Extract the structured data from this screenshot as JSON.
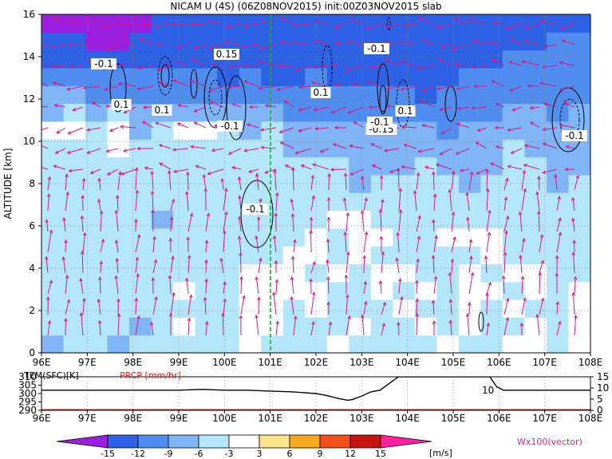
{
  "title": "NICAM U (4S) (06Z08NOV2015) init:00Z03NOV2015 slab",
  "colors": {
    "c_m15": "#9a1fe0",
    "c_m12": "#2e62e6",
    "c_m9": "#4f8ef0",
    "c_m6": "#7fb4f6",
    "c_m3": "#b3e6fa",
    "c_0": "#ffffff",
    "c_3": "#fde68a",
    "c_6": "#f9a81f",
    "c_9": "#f4501c",
    "c_12": "#c81410",
    "c_15": "#ff1fa0",
    "vector": "#e0157c",
    "marker": "#12b02a",
    "tem_line": "#000000",
    "prcp_line": "#e0201a"
  },
  "colorbar": {
    "labels": [
      "-15",
      "-12",
      "-9",
      "-6",
      "-3",
      "3",
      "6",
      "9",
      "12",
      "15"
    ],
    "unit": "[m/s]",
    "vector_label": "Wx100(vector)"
  },
  "top_panel": {
    "ylabel": "ALTITUDE [km]",
    "yticks": [
      "0",
      "2",
      "4",
      "6",
      "8",
      "10",
      "12",
      "14",
      "16"
    ],
    "xticks": [
      "96E",
      "97E",
      "98E",
      "99E",
      "100E",
      "101E",
      "102E",
      "103E",
      "104E",
      "105E",
      "106E",
      "107E",
      "108E"
    ],
    "contour_labels": [
      "-0.1",
      "0.1",
      "0.1",
      "0.15",
      "-0.1",
      "0.1",
      "-0.1",
      "-0.15",
      "0.1",
      "-0.1",
      "-0.1",
      "-0.1"
    ]
  },
  "bottom_panel": {
    "tem_label": "TEM(SFC)[K]",
    "prcp_label": "PRCP [mm/hr]",
    "left_ticks": [
      "310",
      "305",
      "300",
      "295",
      "290"
    ],
    "right_ticks": [
      "15",
      "10",
      "5",
      "0"
    ],
    "annotation": "10",
    "xticks": [
      "96E",
      "97E",
      "98E",
      "99E",
      "100E",
      "101E",
      "102E",
      "103E",
      "104E",
      "105E",
      "106E",
      "107E",
      "108E"
    ]
  },
  "chart_data": [
    {
      "type": "heatmap",
      "title": "NICAM U (4S) (06Z08NOV2015) init:00Z03NOV2015 slab",
      "xlabel": "",
      "ylabel": "ALTITUDE [km]",
      "xlim": [
        96,
        108
      ],
      "ylim": [
        0,
        16
      ],
      "x_ticks": [
        "96E",
        "97E",
        "98E",
        "99E",
        "100E",
        "101E",
        "102E",
        "103E",
        "104E",
        "105E",
        "106E",
        "107E",
        "108E"
      ],
      "y_ticks": [
        0,
        2,
        4,
        6,
        8,
        10,
        12,
        14,
        16
      ],
      "grid": true,
      "colorbar_levels": [
        -15,
        -12,
        -9,
        -6,
        -3,
        3,
        6,
        9,
        12,
        15
      ],
      "colorbar_unit": "[m/s]",
      "marker_line_x": 101,
      "z_rows_bottom_to_top": [
        [
          -6,
          -3,
          -3,
          -6,
          -3,
          -3,
          -3,
          -3,
          -3,
          0,
          -3,
          -3,
          -3,
          0,
          -3,
          -3,
          -3,
          -3,
          0,
          -3,
          -3,
          0,
          0,
          -3,
          0
        ],
        [
          -3,
          -3,
          -3,
          -3,
          -6,
          -3,
          0,
          -3,
          -3,
          0,
          0,
          -3,
          -3,
          -3,
          0,
          -3,
          -3,
          0,
          -3,
          0,
          -3,
          -3,
          0,
          -3,
          0
        ],
        [
          -3,
          -3,
          -3,
          -3,
          -3,
          -3,
          -3,
          -3,
          -3,
          0,
          0,
          -3,
          0,
          -3,
          -3,
          -3,
          0,
          -3,
          -3,
          0,
          -3,
          0,
          -3,
          -3,
          0
        ],
        [
          -3,
          -3,
          -3,
          -3,
          -3,
          -3,
          0,
          -3,
          -3,
          0,
          0,
          0,
          0,
          -3,
          -3,
          0,
          -3,
          0,
          -3,
          0,
          0,
          -3,
          0,
          -3,
          0
        ],
        [
          -3,
          -3,
          -3,
          -3,
          -3,
          -3,
          -3,
          -3,
          -3,
          0,
          0,
          0,
          -3,
          0,
          -3,
          0,
          0,
          -3,
          -3,
          0,
          -3,
          0,
          0,
          -3,
          -3
        ],
        [
          -3,
          -3,
          -3,
          -3,
          -3,
          -3,
          -3,
          -3,
          -3,
          -3,
          -3,
          0,
          0,
          -3,
          0,
          -3,
          -3,
          -3,
          -3,
          -3,
          0,
          -3,
          -3,
          -3,
          -3
        ],
        [
          -3,
          -3,
          -3,
          -3,
          -3,
          -3,
          -3,
          -3,
          -3,
          -3,
          -3,
          -3,
          0,
          -3,
          0,
          0,
          -3,
          -3,
          0,
          0,
          0,
          -3,
          -3,
          -3,
          -3
        ],
        [
          -3,
          -3,
          -3,
          -3,
          -3,
          -6,
          -3,
          -3,
          -3,
          -3,
          -3,
          -3,
          -3,
          0,
          0,
          -3,
          -3,
          -3,
          -3,
          -3,
          -3,
          -3,
          -3,
          -3,
          -3
        ],
        [
          -3,
          -3,
          -3,
          -3,
          -3,
          -3,
          -3,
          -3,
          -3,
          -3,
          -3,
          -3,
          -3,
          -3,
          -3,
          -3,
          -3,
          -3,
          -3,
          -3,
          -3,
          -3,
          -3,
          -3,
          -3
        ],
        [
          -3,
          -3,
          -3,
          -3,
          -3,
          -3,
          -3,
          -3,
          -3,
          -3,
          -3,
          -3,
          -3,
          -3,
          -6,
          -3,
          -3,
          -3,
          -3,
          -6,
          -3,
          -3,
          -3,
          -6,
          -3
        ],
        [
          -3,
          -3,
          -3,
          -3,
          -3,
          -3,
          -3,
          -3,
          -3,
          -3,
          -3,
          -3,
          -3,
          -3,
          -6,
          -6,
          -6,
          -3,
          -6,
          -6,
          -6,
          -3,
          -3,
          -6,
          -6
        ],
        [
          -3,
          -3,
          -3,
          0,
          -3,
          -3,
          -3,
          -3,
          -3,
          -3,
          -3,
          -6,
          -6,
          -6,
          -6,
          -6,
          -6,
          -6,
          -6,
          -6,
          -6,
          -3,
          -6,
          -6,
          -6
        ],
        [
          0,
          0,
          -3,
          0,
          -6,
          -3,
          0,
          0,
          -3,
          -6,
          -3,
          -6,
          -6,
          -6,
          -6,
          -6,
          -6,
          -6,
          -9,
          -6,
          -6,
          -6,
          -6,
          -6,
          -6
        ],
        [
          -6,
          -3,
          -6,
          -3,
          -6,
          -6,
          -6,
          -6,
          -6,
          -6,
          -6,
          -9,
          -9,
          -9,
          -9,
          -9,
          -9,
          -9,
          -9,
          -9,
          -9,
          -6,
          -6,
          -9,
          -6
        ],
        [
          -6,
          -6,
          -9,
          -9,
          -9,
          -9,
          -9,
          -9,
          -9,
          -9,
          -9,
          -9,
          -9,
          -9,
          -9,
          -9,
          -9,
          -12,
          -9,
          -9,
          -9,
          -9,
          -9,
          -9,
          -9
        ],
        [
          -9,
          -9,
          -9,
          -9,
          -9,
          -9,
          -9,
          -9,
          -12,
          -9,
          -12,
          -12,
          -9,
          -12,
          -12,
          -12,
          -12,
          -12,
          -12,
          -9,
          -9,
          -9,
          -9,
          -9,
          -9
        ],
        [
          -12,
          -12,
          -12,
          -12,
          -12,
          -12,
          -12,
          -12,
          -12,
          -12,
          -12,
          -12,
          -12,
          -12,
          -12,
          -12,
          -12,
          -12,
          -12,
          -12,
          -12,
          -9,
          -9,
          -9,
          -9
        ],
        [
          -12,
          -12,
          -15,
          -15,
          -12,
          -12,
          -12,
          -12,
          -12,
          -12,
          -12,
          -12,
          -12,
          -12,
          -12,
          -12,
          -12,
          -12,
          -12,
          -12,
          -12,
          -12,
          -12,
          -9,
          -9
        ],
        [
          -15,
          -15,
          -15,
          -15,
          -15,
          -12,
          -12,
          -12,
          -12,
          -12,
          -12,
          -12,
          -12,
          -12,
          -12,
          -12,
          -12,
          -12,
          -12,
          -12,
          -12,
          -12,
          -12,
          -12,
          -12
        ]
      ]
    },
    {
      "type": "line",
      "xlim": [
        96,
        108
      ],
      "x_ticks": [
        "96E",
        "97E",
        "98E",
        "99E",
        "100E",
        "101E",
        "102E",
        "103E",
        "104E",
        "105E",
        "106E",
        "107E",
        "108E"
      ],
      "left_axis": {
        "label": "TEM(SFC)[K]",
        "ylim": [
          290,
          310
        ]
      },
      "right_axis": {
        "label": "PRCP [mm/hr]",
        "ylim": [
          0,
          15
        ]
      },
      "series": [
        {
          "name": "TEM(SFC)[K]",
          "axis": "left",
          "x": [
            96,
            97,
            98,
            99,
            99.5,
            100,
            100.5,
            101,
            101.5,
            102,
            102.2,
            102.5,
            102.7,
            102.8,
            103.0,
            103.2,
            103.4,
            103.6,
            103.8,
            105.0,
            105.8,
            105.95,
            106.1,
            107,
            108
          ],
          "values": [
            302,
            302,
            302,
            302,
            302.5,
            302,
            302,
            301.5,
            301,
            300,
            299,
            297,
            296,
            296.5,
            298.5,
            301,
            302,
            306,
            310,
            310,
            310,
            304,
            302,
            302,
            302
          ]
        },
        {
          "name": "PRCP [mm/hr]",
          "axis": "right",
          "x": [
            96,
            108
          ],
          "values": [
            0.3,
            0.3
          ]
        }
      ],
      "annotation": "10"
    }
  ]
}
